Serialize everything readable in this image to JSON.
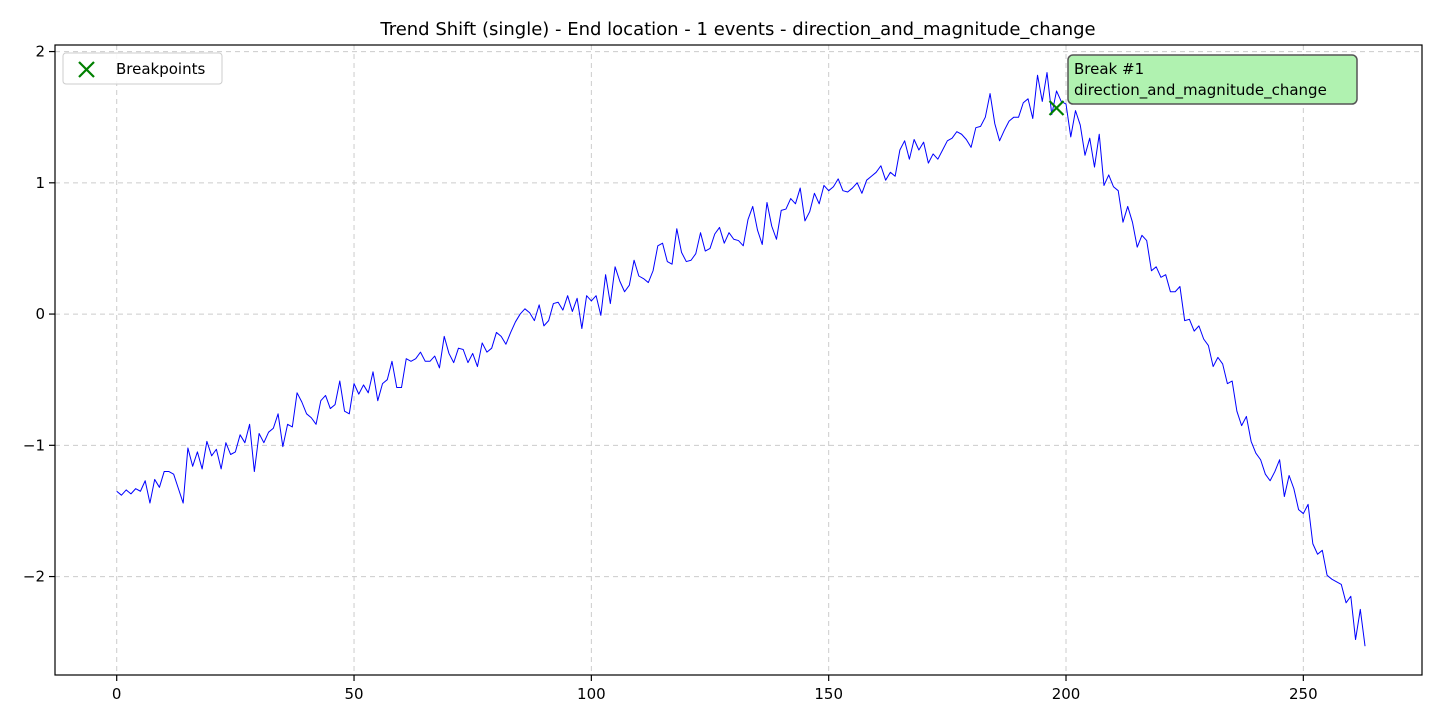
{
  "chart_data": {
    "type": "line",
    "title": "Trend Shift (single) - End location - 1 events - direction_and_magnitude_change",
    "xlabel": "",
    "ylabel": "",
    "xlim": [
      -13,
      275
    ],
    "ylim": [
      -2.75,
      2.05
    ],
    "xticks": [
      0,
      50,
      100,
      150,
      200,
      250
    ],
    "yticks": [
      -2,
      -1,
      0,
      1,
      2
    ],
    "xtick_labels": [
      "0",
      "50",
      "100",
      "150",
      "200",
      "250"
    ],
    "ytick_labels": [
      "−2",
      "−1",
      "0",
      "1",
      "2"
    ],
    "grid": true,
    "legend_position": "top-left",
    "series": [
      {
        "name": "",
        "color": "#0000ff",
        "x_start": 0,
        "x_step": 1,
        "values": [
          -1.35,
          -1.38,
          -1.34,
          -1.37,
          -1.33,
          -1.35,
          -1.27,
          -1.44,
          -1.26,
          -1.32,
          -1.2,
          -1.2,
          -1.22,
          -1.33,
          -1.44,
          -1.02,
          -1.16,
          -1.05,
          -1.18,
          -0.97,
          -1.08,
          -1.03,
          -1.18,
          -0.98,
          -1.07,
          -1.05,
          -0.92,
          -0.98,
          -0.84,
          -1.2,
          -0.91,
          -0.98,
          -0.9,
          -0.87,
          -0.76,
          -1.01,
          -0.84,
          -0.86,
          -0.6,
          -0.67,
          -0.76,
          -0.79,
          -0.84,
          -0.66,
          -0.62,
          -0.72,
          -0.69,
          -0.51,
          -0.74,
          -0.76,
          -0.53,
          -0.61,
          -0.54,
          -0.6,
          -0.44,
          -0.66,
          -0.53,
          -0.5,
          -0.36,
          -0.56,
          -0.56,
          -0.34,
          -0.36,
          -0.34,
          -0.29,
          -0.36,
          -0.36,
          -0.32,
          -0.41,
          -0.17,
          -0.3,
          -0.37,
          -0.26,
          -0.27,
          -0.37,
          -0.3,
          -0.4,
          -0.22,
          -0.29,
          -0.26,
          -0.14,
          -0.17,
          -0.23,
          -0.14,
          -0.06,
          0.0,
          0.04,
          0.01,
          -0.05,
          0.07,
          -0.09,
          -0.05,
          0.08,
          0.09,
          0.03,
          0.14,
          0.02,
          0.12,
          -0.11,
          0.14,
          0.1,
          0.14,
          -0.01,
          0.3,
          0.08,
          0.36,
          0.25,
          0.17,
          0.22,
          0.41,
          0.29,
          0.27,
          0.24,
          0.33,
          0.52,
          0.54,
          0.4,
          0.38,
          0.65,
          0.47,
          0.4,
          0.41,
          0.46,
          0.62,
          0.48,
          0.5,
          0.61,
          0.66,
          0.54,
          0.62,
          0.57,
          0.56,
          0.52,
          0.72,
          0.82,
          0.64,
          0.53,
          0.85,
          0.67,
          0.57,
          0.79,
          0.8,
          0.88,
          0.84,
          0.96,
          0.71,
          0.78,
          0.92,
          0.84,
          0.98,
          0.94,
          0.97,
          1.03,
          0.94,
          0.93,
          0.96,
          1.0,
          0.92,
          1.02,
          1.05,
          1.08,
          1.13,
          1.02,
          1.08,
          1.05,
          1.25,
          1.32,
          1.18,
          1.33,
          1.25,
          1.31,
          1.15,
          1.22,
          1.18,
          1.25,
          1.32,
          1.34,
          1.39,
          1.37,
          1.33,
          1.27,
          1.42,
          1.43,
          1.5,
          1.68,
          1.45,
          1.32,
          1.4,
          1.47,
          1.5,
          1.5,
          1.61,
          1.64,
          1.49,
          1.82,
          1.62,
          1.84,
          1.52,
          1.7,
          1.62,
          1.6,
          1.35,
          1.55,
          1.44,
          1.21,
          1.34,
          1.12,
          1.37,
          0.98,
          1.06,
          0.97,
          0.94,
          0.7,
          0.82,
          0.7,
          0.51,
          0.6,
          0.56,
          0.33,
          0.36,
          0.28,
          0.3,
          0.17,
          0.17,
          0.21,
          -0.05,
          -0.04,
          -0.13,
          -0.09,
          -0.19,
          -0.24,
          -0.4,
          -0.33,
          -0.38,
          -0.53,
          -0.51,
          -0.74,
          -0.85,
          -0.78,
          -0.97,
          -1.06,
          -1.11,
          -1.22,
          -1.27,
          -1.2,
          -1.11,
          -1.39,
          -1.23,
          -1.33,
          -1.49,
          -1.52,
          -1.45,
          -1.75,
          -1.83,
          -1.8,
          -1.99,
          -2.02,
          -2.04,
          -2.06,
          -2.2,
          -2.15,
          -2.48,
          -2.25,
          -2.53
        ]
      }
    ],
    "breakpoints": [
      {
        "x": 198,
        "y": 1.57
      }
    ],
    "marker_color": "#008000",
    "legend": {
      "label": "Breakpoints"
    },
    "annotation": {
      "line1": "Break #1",
      "line2": "direction_and_magnitude_change",
      "box_color": "#b0f2b0",
      "border_color": "#555555"
    }
  }
}
